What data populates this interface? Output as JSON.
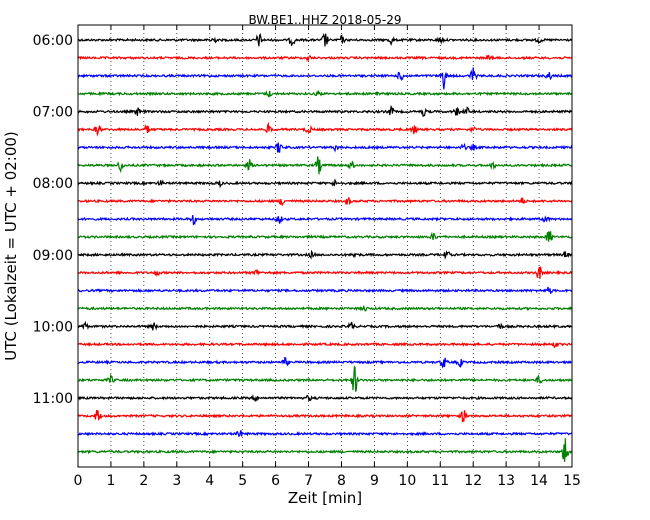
{
  "chart_data": {
    "type": "line",
    "title": "BW.BE1..HHZ 2018-05-29",
    "xlabel": "Zeit  [min]",
    "ylabel": "UTC (Lokalzeit = UTC + 02:00)",
    "xlim": [
      0,
      15
    ],
    "x_ticks": [
      "0",
      "1",
      "2",
      "3",
      "4",
      "5",
      "6",
      "7",
      "8",
      "9",
      "10",
      "11",
      "12",
      "13",
      "14",
      "15"
    ],
    "y_ticks": [
      "06:00",
      "07:00",
      "08:00",
      "09:00",
      "10:00",
      "11:00"
    ],
    "grid": "vertical dotted",
    "trace_colors": [
      "#000000",
      "#ff0000",
      "#0000ff",
      "#008000"
    ],
    "traces": [
      {
        "start": "06:00",
        "events": [
          [
            4.1,
            0.3
          ],
          [
            5.5,
            0.5
          ],
          [
            6.5,
            0.4
          ],
          [
            7.5,
            0.6
          ],
          [
            8.0,
            0.3
          ],
          [
            9.5,
            0.3
          ],
          [
            11.0,
            0.2
          ],
          [
            14.0,
            0.2
          ]
        ]
      },
      {
        "start": "06:15",
        "events": [
          [
            7.0,
            0.2
          ],
          [
            12.5,
            0.2
          ]
        ]
      },
      {
        "start": "06:30",
        "events": [
          [
            9.8,
            0.4
          ],
          [
            11.1,
            1.0
          ],
          [
            12.0,
            0.6
          ],
          [
            14.3,
            0.3
          ]
        ]
      },
      {
        "start": "06:45",
        "events": [
          [
            5.8,
            0.2
          ],
          [
            7.3,
            0.2
          ],
          [
            9.1,
            0.2
          ]
        ]
      },
      {
        "start": "07:00",
        "events": [
          [
            1.8,
            0.3
          ],
          [
            9.5,
            0.4
          ],
          [
            10.5,
            0.3
          ],
          [
            11.5,
            0.3
          ],
          [
            11.8,
            0.3
          ]
        ]
      },
      {
        "start": "07:15",
        "events": [
          [
            0.6,
            0.4
          ],
          [
            2.1,
            0.3
          ],
          [
            5.8,
            0.4
          ],
          [
            7.0,
            0.3
          ],
          [
            10.2,
            0.3
          ],
          [
            12.0,
            0.2
          ]
        ]
      },
      {
        "start": "07:30",
        "events": [
          [
            6.1,
            0.5
          ],
          [
            7.8,
            0.2
          ],
          [
            11.7,
            0.2
          ],
          [
            12.0,
            0.2
          ]
        ]
      },
      {
        "start": "07:45",
        "events": [
          [
            1.3,
            0.4
          ],
          [
            5.2,
            0.4
          ],
          [
            7.3,
            0.7
          ],
          [
            8.3,
            0.3
          ],
          [
            12.6,
            0.2
          ]
        ]
      },
      {
        "start": "08:00",
        "events": [
          [
            2.5,
            0.2
          ],
          [
            4.3,
            0.2
          ],
          [
            7.8,
            0.2
          ]
        ]
      },
      {
        "start": "08:15",
        "events": [
          [
            6.2,
            0.3
          ],
          [
            8.2,
            0.3
          ],
          [
            13.5,
            0.2
          ]
        ]
      },
      {
        "start": "08:30",
        "events": [
          [
            3.5,
            0.4
          ],
          [
            6.1,
            0.4
          ],
          [
            14.2,
            0.3
          ]
        ]
      },
      {
        "start": "08:45",
        "events": [
          [
            10.8,
            0.3
          ],
          [
            14.3,
            0.6
          ]
        ]
      },
      {
        "start": "09:00",
        "events": [
          [
            7.1,
            0.2
          ],
          [
            8.4,
            0.2
          ],
          [
            11.2,
            0.3
          ],
          [
            14.8,
            0.2
          ]
        ]
      },
      {
        "start": "09:15",
        "events": [
          [
            2.4,
            0.2
          ],
          [
            5.4,
            0.2
          ],
          [
            14.0,
            0.6
          ]
        ]
      },
      {
        "start": "09:30",
        "events": [
          [
            14.3,
            0.3
          ]
        ]
      },
      {
        "start": "09:45",
        "events": [
          [
            8.7,
            0.2
          ]
        ]
      },
      {
        "start": "10:00",
        "events": [
          [
            0.2,
            0.3
          ],
          [
            2.3,
            0.3
          ],
          [
            8.3,
            0.3
          ],
          [
            12.8,
            0.2
          ]
        ]
      },
      {
        "start": "10:15",
        "events": [
          [
            14.5,
            0.2
          ]
        ]
      },
      {
        "start": "10:30",
        "events": [
          [
            6.3,
            0.3
          ],
          [
            11.1,
            0.5
          ],
          [
            11.6,
            0.3
          ]
        ]
      },
      {
        "start": "10:45",
        "events": [
          [
            1.0,
            0.3
          ],
          [
            8.4,
            1.2
          ],
          [
            14.0,
            0.3
          ]
        ]
      },
      {
        "start": "11:00",
        "events": [
          [
            5.4,
            0.2
          ],
          [
            7.0,
            0.2
          ]
        ]
      },
      {
        "start": "11:15",
        "events": [
          [
            0.6,
            0.5
          ],
          [
            11.7,
            0.5
          ]
        ]
      },
      {
        "start": "11:30",
        "events": [
          [
            4.9,
            0.3
          ]
        ]
      },
      {
        "start": "11:45",
        "events": [
          [
            14.8,
            1.2
          ]
        ]
      }
    ]
  }
}
